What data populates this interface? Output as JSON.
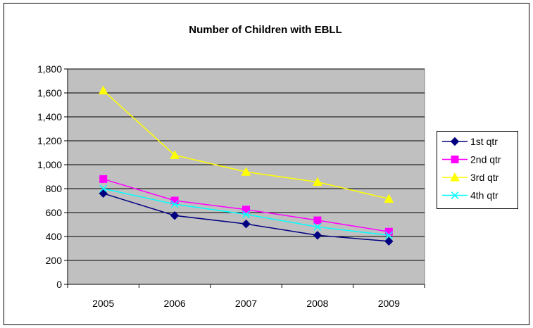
{
  "chart_data": {
    "type": "line",
    "title": "Number of Children with EBLL",
    "xlabel": "",
    "ylabel": "",
    "categories": [
      "2005",
      "2006",
      "2007",
      "2008",
      "2009"
    ],
    "ylim": [
      0,
      1800
    ],
    "yticks": [
      0,
      200,
      400,
      600,
      800,
      1000,
      1200,
      1400,
      1600,
      1800
    ],
    "ytick_labels": [
      "0",
      "200",
      "400",
      "600",
      "800",
      "1,000",
      "1,200",
      "1,400",
      "1,600",
      "1,800"
    ],
    "grid": "horizontal",
    "plot_background": "#c0c0c0",
    "legend_position": "right",
    "series": [
      {
        "name": "1st qtr",
        "values": [
          760,
          575,
          505,
          410,
          360
        ],
        "color": "#000080",
        "marker": "diamond"
      },
      {
        "name": "2nd qtr",
        "values": [
          880,
          700,
          625,
          535,
          440
        ],
        "color": "#ff00ff",
        "marker": "square"
      },
      {
        "name": "3rd qtr",
        "values": [
          1620,
          1080,
          940,
          855,
          715
        ],
        "color": "#ffff00",
        "marker": "triangle"
      },
      {
        "name": "4th qtr",
        "values": [
          800,
          670,
          585,
          480,
          410
        ],
        "color": "#00ffff",
        "marker": "x"
      }
    ]
  }
}
